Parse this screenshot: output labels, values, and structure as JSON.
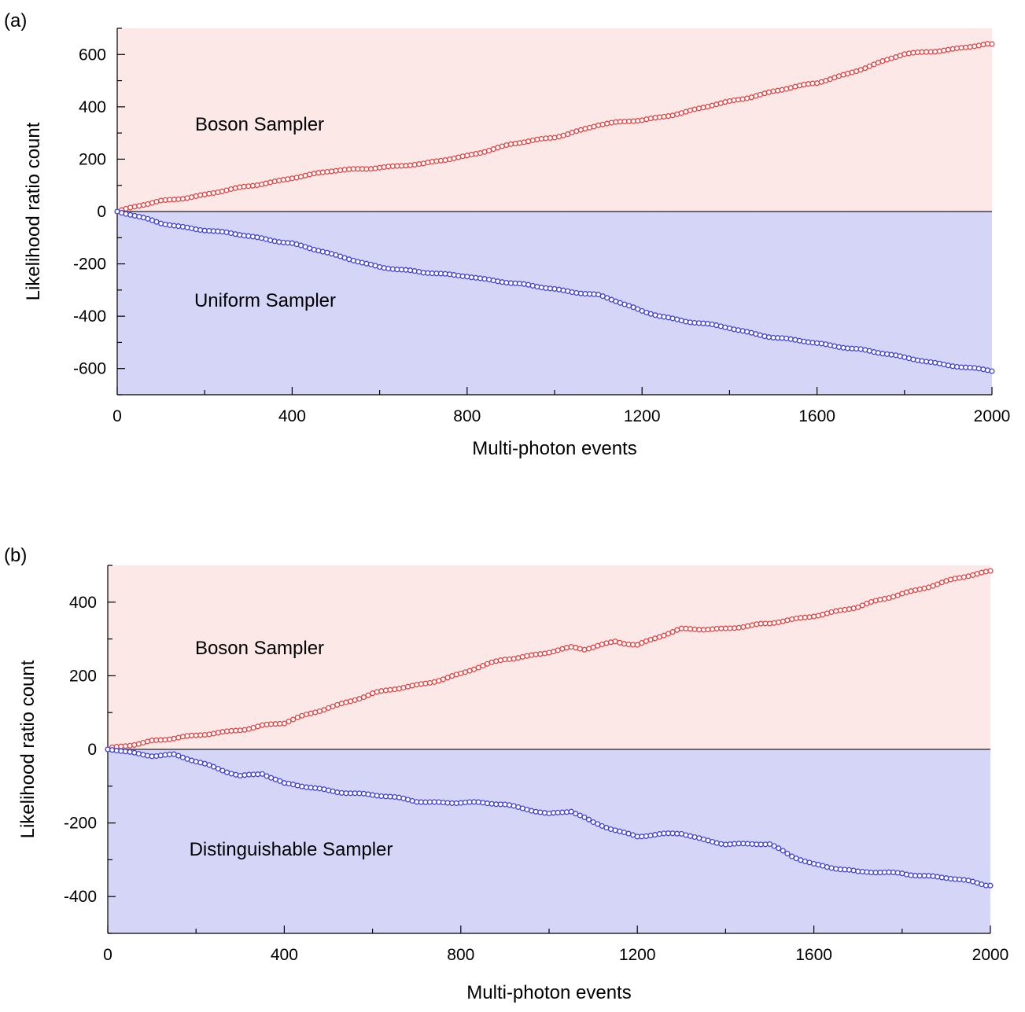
{
  "chart_data": [
    {
      "type": "line",
      "panel_label": "(a)",
      "xlabel": "Multi-photon events",
      "ylabel": "Likelihood ratio count",
      "xlim": [
        0,
        2000
      ],
      "ylim": [
        -700,
        700
      ],
      "xticks": [
        0,
        400,
        800,
        1200,
        1600,
        2000
      ],
      "xtick_labels": [
        "0",
        "400",
        "800",
        "1200",
        "1600",
        "2000"
      ],
      "yticks": [
        600,
        400,
        200,
        0,
        -200,
        -400,
        -600
      ],
      "ytick_labels": [
        "600",
        "400",
        "200",
        "0",
        "-200",
        "-400",
        "-600"
      ],
      "regions": [
        {
          "label": "Boson Sampler",
          "sign": "positive",
          "color": "#fde8e8"
        },
        {
          "label": "Uniform Sampler",
          "sign": "negative",
          "color": "#d5d5f8"
        }
      ],
      "series": [
        {
          "name": "Boson Sampler",
          "color": "#e8403f",
          "x": [
            0,
            100,
            200,
            300,
            400,
            500,
            600,
            700,
            800,
            900,
            1000,
            1100,
            1200,
            1300,
            1400,
            1500,
            1600,
            1700,
            1800,
            1900,
            2000
          ],
          "y": [
            0,
            40,
            65,
            95,
            130,
            155,
            170,
            180,
            215,
            255,
            285,
            330,
            350,
            380,
            420,
            460,
            490,
            545,
            600,
            620,
            640
          ]
        },
        {
          "name": "Uniform Sampler",
          "color": "#3f3fe0",
          "x": [
            0,
            100,
            200,
            300,
            400,
            500,
            600,
            700,
            800,
            900,
            1000,
            1100,
            1200,
            1300,
            1400,
            1500,
            1600,
            1700,
            1800,
            1900,
            2000
          ],
          "y": [
            0,
            -45,
            -70,
            -95,
            -120,
            -170,
            -210,
            -235,
            -245,
            -275,
            -295,
            -320,
            -380,
            -420,
            -445,
            -480,
            -505,
            -525,
            -560,
            -585,
            -610
          ]
        }
      ]
    },
    {
      "type": "line",
      "panel_label": "(b)",
      "xlabel": "Multi-photon events",
      "ylabel": "Likelihood ratio count",
      "xlim": [
        0,
        2000
      ],
      "ylim": [
        -500,
        500
      ],
      "xticks": [
        0,
        400,
        800,
        1200,
        1600,
        2000
      ],
      "xtick_labels": [
        "0",
        "400",
        "800",
        "1200",
        "1600",
        "2000"
      ],
      "yticks": [
        400,
        200,
        0,
        -200,
        -400
      ],
      "ytick_labels": [
        "400",
        "200",
        "0",
        "-200",
        "-400"
      ],
      "regions": [
        {
          "label": "Boson Sampler",
          "sign": "positive",
          "color": "#fde8e8"
        },
        {
          "label": "Distinguishable Sampler",
          "sign": "negative",
          "color": "#d5d5f8"
        }
      ],
      "series": [
        {
          "name": "Boson Sampler",
          "color": "#e8403f",
          "x": [
            0,
            100,
            200,
            300,
            350,
            400,
            500,
            600,
            700,
            800,
            900,
            1000,
            1050,
            1080,
            1150,
            1200,
            1300,
            1400,
            1450,
            1500,
            1600,
            1700,
            1800,
            1900,
            2000
          ],
          "y": [
            0,
            25,
            35,
            55,
            65,
            70,
            115,
            150,
            175,
            205,
            245,
            265,
            275,
            270,
            295,
            285,
            325,
            330,
            335,
            340,
            365,
            385,
            425,
            455,
            485
          ]
        },
        {
          "name": "Distinguishable Sampler",
          "color": "#3f3fe0",
          "x": [
            0,
            100,
            150,
            200,
            300,
            350,
            400,
            500,
            600,
            700,
            800,
            900,
            950,
            1000,
            1050,
            1100,
            1200,
            1300,
            1350,
            1400,
            1500,
            1550,
            1600,
            1700,
            1800,
            1900,
            2000
          ],
          "y": [
            0,
            -15,
            -15,
            -35,
            -70,
            -65,
            -95,
            -110,
            -125,
            -140,
            -145,
            -150,
            -160,
            -175,
            -170,
            -200,
            -235,
            -230,
            -245,
            -255,
            -260,
            -290,
            -310,
            -335,
            -335,
            -350,
            -370
          ]
        }
      ]
    }
  ]
}
